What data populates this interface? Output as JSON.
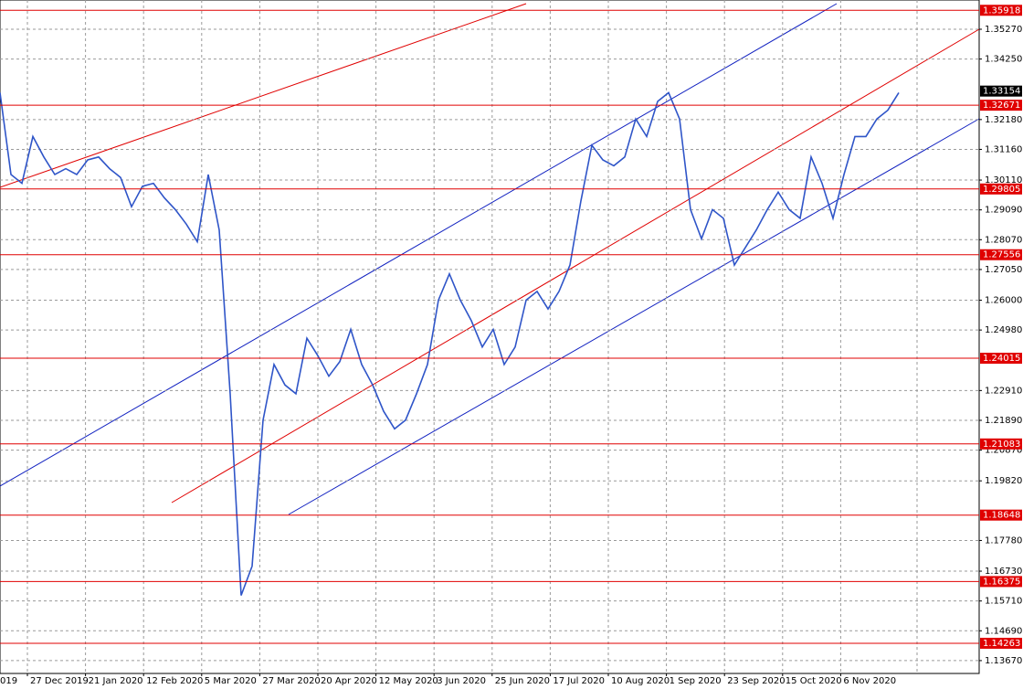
{
  "chart_data": {
    "type": "line",
    "x_labels": [
      "019",
      "27 Dec 2019",
      "21 Jan 2020",
      "12 Feb 2020",
      "5 Mar 2020",
      "27 Mar 2020",
      "20 Apr 2020",
      "12 May 2020",
      "3 Jun 2020",
      "25 Jun 2020",
      "17 Jul 2020",
      "10 Aug 2020",
      "1 Sep 2020",
      "23 Sep 2020",
      "15 Oct 2020",
      "6 Nov 2020"
    ],
    "series": [
      {
        "color": "#2f55c8",
        "values": [
          1.331,
          1.303,
          1.3,
          1.316,
          1.309,
          1.303,
          1.305,
          1.303,
          1.308,
          1.309,
          1.305,
          1.302,
          1.292,
          1.299,
          1.3,
          1.295,
          1.291,
          1.286,
          1.28,
          1.303,
          1.284,
          1.228,
          1.159,
          1.169,
          1.219,
          1.238,
          1.231,
          1.228,
          1.247,
          1.241,
          1.234,
          1.239,
          1.25,
          1.238,
          1.231,
          1.222,
          1.216,
          1.219,
          1.228,
          1.238,
          1.26,
          1.269,
          1.26,
          1.253,
          1.244,
          1.25,
          1.238,
          1.244,
          1.26,
          1.263,
          1.257,
          1.263,
          1.272,
          1.294,
          1.313,
          1.308,
          1.306,
          1.309,
          1.322,
          1.316,
          1.328,
          1.331,
          1.322,
          1.291,
          1.281,
          1.291,
          1.288,
          1.272,
          1.278,
          1.284,
          1.291,
          1.297,
          1.291,
          1.288,
          1.309,
          1.3,
          1.288,
          1.303,
          1.316,
          1.316,
          1.322,
          1.325,
          1.331
        ]
      }
    ],
    "ylim": [
      1.1323,
      1.3627
    ],
    "yticks": [
      {
        "value": 1.3527,
        "label": "1.35270"
      },
      {
        "value": 1.3425,
        "label": "1.34250"
      },
      {
        "value": 1.3218,
        "label": "1.32180"
      },
      {
        "value": 1.3116,
        "label": "1.31160"
      },
      {
        "value": 1.3011,
        "label": "1.30110"
      },
      {
        "value": 1.2909,
        "label": "1.29090"
      },
      {
        "value": 1.2807,
        "label": "1.28070"
      },
      {
        "value": 1.2705,
        "label": "1.27050"
      },
      {
        "value": 1.26,
        "label": "1.26000"
      },
      {
        "value": 1.2498,
        "label": "1.24980"
      },
      {
        "value": 1.2291,
        "label": "1.22910"
      },
      {
        "value": 1.2189,
        "label": "1.21890"
      },
      {
        "value": 1.2087,
        "label": "1.20870"
      },
      {
        "value": 1.1982,
        "label": "1.19820"
      },
      {
        "value": 1.1778,
        "label": "1.17780"
      },
      {
        "value": 1.1673,
        "label": "1.16730"
      },
      {
        "value": 1.1571,
        "label": "1.15710"
      },
      {
        "value": 1.1469,
        "label": "1.14690"
      },
      {
        "value": 1.1367,
        "label": "1.13670"
      }
    ],
    "levels": [
      1.35918,
      1.32671,
      1.29805,
      1.27556,
      1.24015,
      1.21083,
      1.18648,
      1.16375,
      1.14263
    ],
    "level_color": "#e00000",
    "current_price": 1.33154,
    "grid": true
  }
}
